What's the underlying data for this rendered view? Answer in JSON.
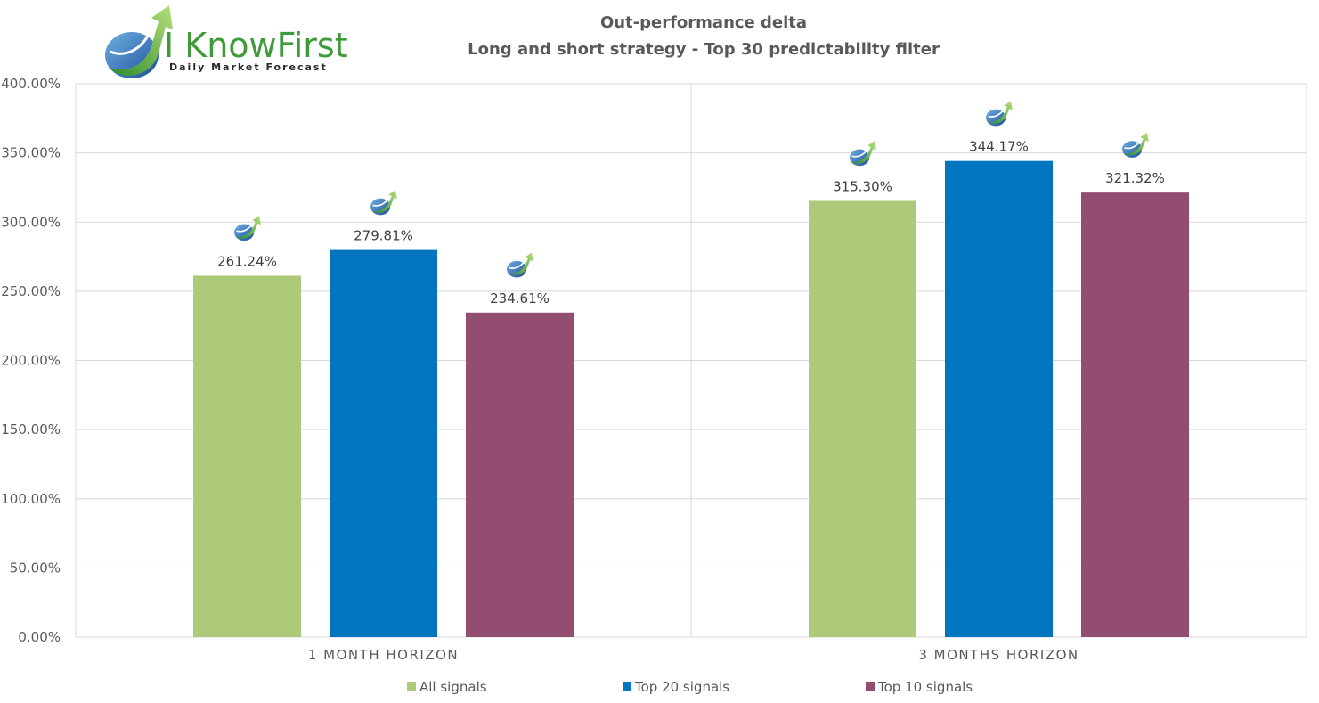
{
  "logo": {
    "name": "I KnowFirst",
    "tagline": "Daily Market Forecast"
  },
  "chart_data": {
    "type": "bar",
    "title": [
      "Out-performance delta",
      "Long and short strategy - Top 30 predictability filter"
    ],
    "categories": [
      "1 MONTH HORIZON",
      "3 MONTHS HORIZON"
    ],
    "series": [
      {
        "name": "All signals",
        "color": "#adc97a",
        "values": [
          261.24,
          315.3
        ],
        "labels": [
          "261.24%",
          "315.30%"
        ]
      },
      {
        "name": "Top 20 signals",
        "color": "#0175bf",
        "values": [
          279.81,
          344.17
        ],
        "labels": [
          "279.81%",
          "344.17%"
        ]
      },
      {
        "name": "Top 10 signals",
        "color": "#924d71",
        "values": [
          234.61,
          321.32
        ],
        "labels": [
          "234.61%",
          "321.32%"
        ]
      }
    ],
    "ylim": [
      0,
      400
    ],
    "yticks": [
      0,
      50,
      100,
      150,
      200,
      250,
      300,
      350,
      400
    ],
    "ytick_labels": [
      "0.00%",
      "50.00%",
      "100.00%",
      "150.00%",
      "200.00%",
      "250.00%",
      "300.00%",
      "350.00%",
      "400.00%"
    ],
    "grid": true,
    "legend": "bottom",
    "marker_icon": "iknowfirst-logo-icon"
  }
}
